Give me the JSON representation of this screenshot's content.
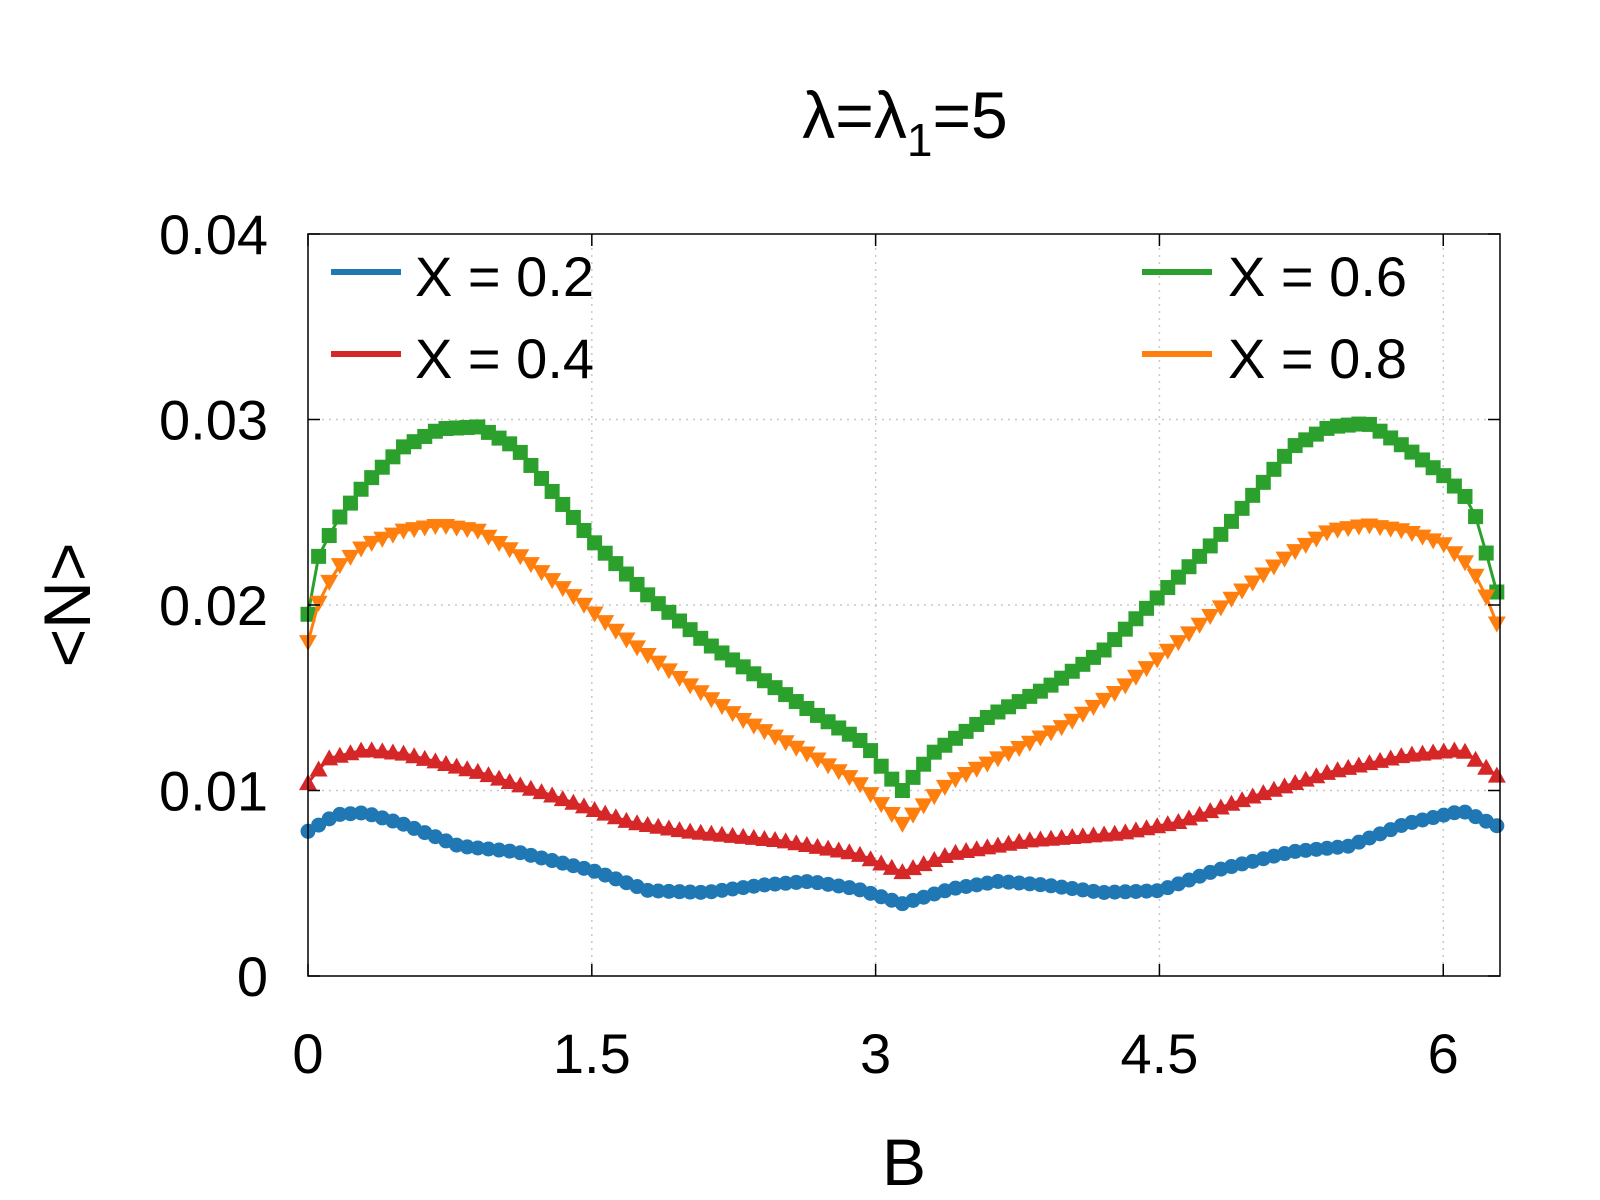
{
  "chart_data": {
    "type": "line",
    "title": {
      "base": "λ=λ",
      "subscript": "1",
      "suffix": "=5"
    },
    "xlabel": "B",
    "ylabel": "<N>",
    "xlim": [
      0,
      6.3
    ],
    "ylim": [
      0,
      0.04
    ],
    "xticks": [
      0,
      1.5,
      3,
      4.5,
      6
    ],
    "xtick_labels": [
      "0",
      "1.5",
      "3",
      "4.5",
      "6"
    ],
    "yticks": [
      0,
      0.01,
      0.02,
      0.03,
      0.04
    ],
    "ytick_labels": [
      "0",
      "0.01",
      "0.02",
      "0.03",
      "0.04"
    ],
    "grid": true,
    "legend_position": "top (two columns)",
    "x_points": {
      "start": 0,
      "end": 6.2832,
      "count": 113
    },
    "series": [
      {
        "name": "X = 0.2",
        "color": "#1f77b4",
        "marker": "circle",
        "keypoints": [
          [
            0,
            0.0078
          ],
          [
            0.15,
            0.0087
          ],
          [
            0.3,
            0.0088
          ],
          [
            0.5,
            0.0082
          ],
          [
            0.8,
            0.007
          ],
          [
            1.1,
            0.0067
          ],
          [
            1.5,
            0.0057
          ],
          [
            1.8,
            0.0046
          ],
          [
            2.1,
            0.0045
          ],
          [
            2.4,
            0.0049
          ],
          [
            2.65,
            0.0051
          ],
          [
            2.9,
            0.0047
          ],
          [
            3.1416,
            0.0039
          ],
          [
            3.4,
            0.0047
          ],
          [
            3.65,
            0.0051
          ],
          [
            3.9,
            0.0049
          ],
          [
            4.2,
            0.0045
          ],
          [
            4.5,
            0.0046
          ],
          [
            4.8,
            0.0057
          ],
          [
            5.2,
            0.0067
          ],
          [
            5.5,
            0.007
          ],
          [
            5.8,
            0.0082
          ],
          [
            6.1,
            0.0089
          ],
          [
            6.2832,
            0.0081
          ]
        ]
      },
      {
        "name": "X = 0.4",
        "color": "#d62728",
        "marker": "triangle-up",
        "keypoints": [
          [
            0,
            0.0104
          ],
          [
            0.1,
            0.0117
          ],
          [
            0.3,
            0.0122
          ],
          [
            0.5,
            0.012
          ],
          [
            0.9,
            0.011
          ],
          [
            1.3,
            0.0097
          ],
          [
            1.7,
            0.0083
          ],
          [
            2.0,
            0.0078
          ],
          [
            2.5,
            0.0073
          ],
          [
            2.9,
            0.0066
          ],
          [
            3.1416,
            0.0056
          ],
          [
            3.4,
            0.0066
          ],
          [
            3.8,
            0.0073
          ],
          [
            4.3,
            0.0077
          ],
          [
            4.6,
            0.0083
          ],
          [
            5.0,
            0.0097
          ],
          [
            5.4,
            0.011
          ],
          [
            5.8,
            0.0119
          ],
          [
            6.1,
            0.0122
          ],
          [
            6.2832,
            0.0108
          ]
        ]
      },
      {
        "name": "X = 0.6",
        "color": "#2ca02c",
        "marker": "square",
        "keypoints": [
          [
            0,
            0.0195
          ],
          [
            0.05,
            0.0225
          ],
          [
            0.15,
            0.0245
          ],
          [
            0.3,
            0.0265
          ],
          [
            0.5,
            0.0285
          ],
          [
            0.7,
            0.0295
          ],
          [
            0.9,
            0.0296
          ],
          [
            1.1,
            0.0285
          ],
          [
            1.3,
            0.026
          ],
          [
            1.5,
            0.0235
          ],
          [
            1.8,
            0.0205
          ],
          [
            2.1,
            0.018
          ],
          [
            2.4,
            0.016
          ],
          [
            2.7,
            0.014
          ],
          [
            2.95,
            0.0125
          ],
          [
            3.05,
            0.011
          ],
          [
            3.1416,
            0.01
          ],
          [
            3.3,
            0.012
          ],
          [
            3.6,
            0.014
          ],
          [
            3.9,
            0.0155
          ],
          [
            4.2,
            0.0175
          ],
          [
            4.5,
            0.0205
          ],
          [
            4.8,
            0.0235
          ],
          [
            5.0,
            0.026
          ],
          [
            5.2,
            0.0285
          ],
          [
            5.4,
            0.0296
          ],
          [
            5.6,
            0.0298
          ],
          [
            5.8,
            0.0285
          ],
          [
            6.0,
            0.027
          ],
          [
            6.15,
            0.0255
          ],
          [
            6.25,
            0.022
          ],
          [
            6.2832,
            0.0207
          ]
        ]
      },
      {
        "name": "X = 0.8",
        "color": "#ff7f0e",
        "marker": "triangle-down",
        "keypoints": [
          [
            0,
            0.018
          ],
          [
            0.05,
            0.02
          ],
          [
            0.15,
            0.022
          ],
          [
            0.3,
            0.0232
          ],
          [
            0.5,
            0.024
          ],
          [
            0.7,
            0.0243
          ],
          [
            0.9,
            0.024
          ],
          [
            1.1,
            0.0228
          ],
          [
            1.4,
            0.0205
          ],
          [
            1.7,
            0.018
          ],
          [
            2.0,
            0.0158
          ],
          [
            2.3,
            0.0138
          ],
          [
            2.6,
            0.0122
          ],
          [
            2.9,
            0.0105
          ],
          [
            3.1416,
            0.0082
          ],
          [
            3.4,
            0.0105
          ],
          [
            3.7,
            0.012
          ],
          [
            4.0,
            0.0135
          ],
          [
            4.3,
            0.0155
          ],
          [
            4.6,
            0.018
          ],
          [
            4.9,
            0.0205
          ],
          [
            5.2,
            0.0228
          ],
          [
            5.4,
            0.024
          ],
          [
            5.6,
            0.0243
          ],
          [
            5.8,
            0.024
          ],
          [
            6.0,
            0.0233
          ],
          [
            6.15,
            0.022
          ],
          [
            6.25,
            0.02
          ],
          [
            6.2832,
            0.019
          ]
        ]
      }
    ]
  }
}
